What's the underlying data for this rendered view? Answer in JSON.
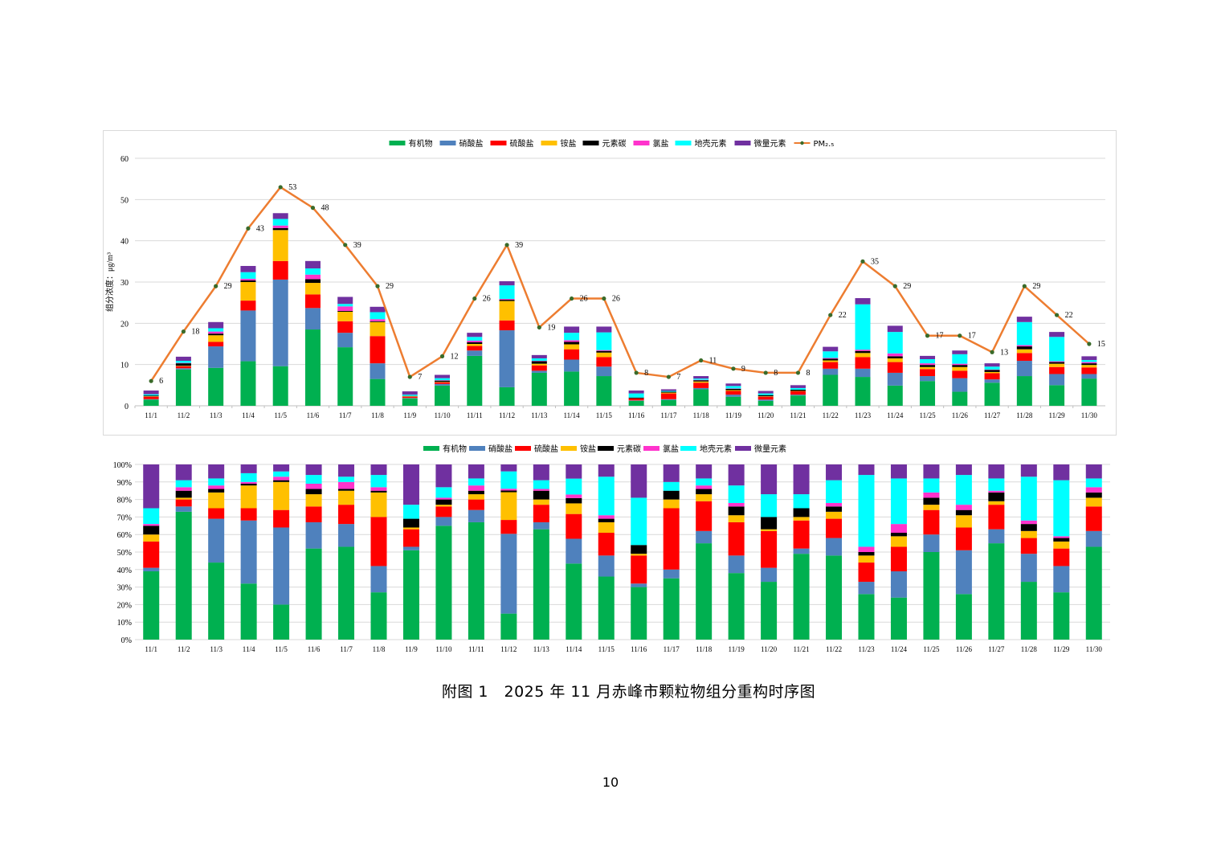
{
  "caption": "附图 1　2025 年 11 月赤峰市颗粒物组分重构时序图",
  "page_number": "10",
  "colors": {
    "有机物": "#00b050",
    "硝酸盐": "#4f81bd",
    "硫酸盐": "#ff0000",
    "铵盐": "#ffc000",
    "元素碳": "#000000",
    "氯盐": "#ff33cc",
    "地壳元素": "#00ffff",
    "微量元素": "#7030a0",
    "PM2.5": "#ed7d31"
  },
  "chart_data": [
    {
      "type": "bar",
      "stacked": true,
      "title": "",
      "xlabel": "",
      "ylabel": "组分浓度：μg/m³",
      "ylim": [
        0,
        60
      ],
      "yticks": [
        "0",
        "10",
        "20",
        "30",
        "40",
        "50",
        "60"
      ],
      "grid": true,
      "legend_position": "top",
      "legend": [
        "有机物",
        "硝酸盐",
        "硫酸盐",
        "铵盐",
        "元素碳",
        "氯盐",
        "地壳元素",
        "微量元素",
        "PM₂.₅"
      ],
      "categories": [
        "11/1",
        "11/2",
        "11/3",
        "11/4",
        "11/5",
        "11/6",
        "11/7",
        "11/8",
        "11/9",
        "11/10",
        "11/11",
        "11/12",
        "11/13",
        "11/14",
        "11/15",
        "11/16",
        "11/17",
        "11/18",
        "11/19",
        "11/20",
        "11/21",
        "11/22",
        "11/23",
        "11/24",
        "11/25",
        "11/26",
        "11/27",
        "11/28",
        "11/29",
        "11/30"
      ],
      "series": [
        {
          "name": "有机物",
          "values": [
            1.5,
            8.8,
            9.2,
            10.8,
            9.6,
            18.5,
            14.2,
            6.5,
            1.8,
            4.9,
            12.1,
            4.5,
            8.0,
            8.3,
            7.2,
            1.2,
            1.4,
            4.0,
            2.2,
            1.2,
            2.5,
            7.5,
            7.0,
            4.9,
            6.0,
            3.4,
            5.6,
            7.2,
            5.0,
            6.6
          ]
        },
        {
          "name": "硝酸盐",
          "values": [
            0.1,
            0.3,
            5.2,
            12.3,
            21.0,
            5.2,
            3.5,
            3.8,
            0.1,
            0.4,
            1.3,
            13.8,
            0.5,
            2.9,
            2.3,
            0.1,
            0.2,
            0.3,
            0.5,
            0.3,
            0.2,
            1.5,
            2.0,
            3.1,
            1.2,
            3.3,
            0.8,
            3.7,
            2.7,
            1.1
          ]
        },
        {
          "name": "硫酸盐",
          "values": [
            0.6,
            0.5,
            1.1,
            2.4,
            4.5,
            3.3,
            2.8,
            6.6,
            0.3,
            0.4,
            1.1,
            2.4,
            1.3,
            2.5,
            2.3,
            0.5,
            1.4,
            1.3,
            0.9,
            0.7,
            0.8,
            1.6,
            2.8,
            2.6,
            1.7,
            1.8,
            1.5,
            1.9,
            1.7,
            1.6
          ]
        },
        {
          "name": "铵盐",
          "values": [
            0.1,
            0.1,
            1.6,
            4.5,
            7.5,
            2.8,
            2.3,
            3.4,
            0.1,
            0.1,
            0.5,
            4.7,
            0.4,
            1.2,
            1.1,
            0.0,
            0.2,
            0.3,
            0.2,
            0.1,
            0.1,
            0.4,
            1.0,
            0.9,
            0.5,
            0.9,
            0.3,
            0.9,
            0.8,
            0.6
          ]
        },
        {
          "name": "元素碳",
          "values": [
            0.2,
            0.6,
            0.4,
            0.4,
            0.5,
            0.9,
            0.2,
            0.2,
            0.1,
            0.3,
            0.4,
            0.3,
            0.6,
            0.6,
            0.4,
            0.2,
            0.2,
            0.3,
            0.3,
            0.3,
            0.3,
            0.4,
            0.5,
            0.5,
            0.5,
            0.5,
            0.5,
            0.7,
            0.4,
            0.4
          ]
        },
        {
          "name": "氯盐",
          "values": [
            0.0,
            0.1,
            0.5,
            0.4,
            0.6,
            1.1,
            1.1,
            0.5,
            0.0,
            0.1,
            0.4,
            0.2,
            0.1,
            0.4,
            0.2,
            0.0,
            0.0,
            0.1,
            0.1,
            0.0,
            0.0,
            0.2,
            0.3,
            0.7,
            0.4,
            0.3,
            0.1,
            0.3,
            0.2,
            0.3
          ]
        },
        {
          "name": "地壳元素",
          "values": [
            0.3,
            0.5,
            0.8,
            1.6,
            1.6,
            1.5,
            0.6,
            1.7,
            0.3,
            0.5,
            0.9,
            3.3,
            0.6,
            1.8,
            4.3,
            1.0,
            0.2,
            0.3,
            0.6,
            0.4,
            0.4,
            1.6,
            11.0,
            5.2,
            1.0,
            2.3,
            0.7,
            5.6,
            5.9,
            0.5
          ]
        },
        {
          "name": "微量元素",
          "values": [
            0.9,
            1.0,
            1.5,
            1.5,
            1.4,
            1.8,
            1.7,
            1.3,
            0.8,
            0.8,
            1.0,
            1.0,
            0.8,
            1.5,
            1.4,
            0.7,
            0.4,
            0.6,
            0.6,
            0.6,
            0.7,
            1.1,
            1.5,
            1.5,
            0.8,
            0.9,
            0.8,
            1.3,
            1.2,
            0.9
          ]
        }
      ],
      "line_series": {
        "name": "PM₂.₅",
        "values": [
          6,
          18,
          29,
          43,
          53,
          48,
          39,
          29,
          7,
          12,
          26,
          39,
          19,
          26,
          26,
          8,
          7,
          11,
          9,
          8,
          8,
          22,
          35,
          29,
          17,
          17,
          13,
          29,
          22,
          15
        ]
      }
    },
    {
      "type": "bar",
      "stacked": true,
      "percent": true,
      "title": "",
      "xlabel": "",
      "ylabel": "",
      "ylim": [
        0,
        100
      ],
      "yticks": [
        "0%",
        "10%",
        "20%",
        "30%",
        "40%",
        "50%",
        "60%",
        "70%",
        "80%",
        "90%",
        "100%"
      ],
      "grid": true,
      "legend_position": "top",
      "legend": [
        "有机物",
        "硝酸盐",
        "硫酸盐",
        "铵盐",
        "元素碳",
        "氯盐",
        "地壳元素",
        "微量元素"
      ],
      "categories": [
        "11/1",
        "11/2",
        "11/3",
        "11/4",
        "11/5",
        "11/6",
        "11/7",
        "11/8",
        "11/9",
        "11/10",
        "11/11",
        "11/12",
        "11/13",
        "11/14",
        "11/15",
        "11/16",
        "11/17",
        "11/18",
        "11/19",
        "11/20",
        "11/21",
        "11/22",
        "11/23",
        "11/24",
        "11/25",
        "11/26",
        "11/27",
        "11/28",
        "11/29",
        "11/30"
      ],
      "series": [
        {
          "name": "有机物",
          "values": [
            39,
            73,
            44,
            32,
            20,
            52,
            53,
            27,
            51,
            65,
            67,
            15,
            63,
            43,
            36,
            30,
            35,
            55,
            38,
            33,
            49,
            48,
            26,
            24,
            50,
            26,
            55,
            33,
            27,
            53
          ]
        },
        {
          "name": "硝酸盐",
          "values": [
            2,
            3,
            25,
            36,
            44,
            15,
            13,
            15,
            2,
            5,
            7,
            46,
            4,
            14,
            12,
            2,
            5,
            7,
            10,
            8,
            3,
            10,
            7,
            15,
            10,
            25,
            8,
            16,
            15,
            9
          ]
        },
        {
          "name": "硫酸盐",
          "values": [
            15,
            4,
            6,
            7,
            10,
            9,
            11,
            28,
            10,
            6,
            6,
            8,
            10,
            14,
            13,
            16,
            35,
            17,
            19,
            21,
            16,
            11,
            11,
            14,
            14,
            13,
            14,
            9,
            10,
            14
          ]
        },
        {
          "name": "铵盐",
          "values": [
            4,
            1,
            9,
            13,
            16,
            7,
            8,
            14,
            1,
            1,
            3,
            16,
            3,
            6,
            6,
            1,
            5,
            4,
            4,
            1,
            2,
            4,
            4,
            6,
            3,
            7,
            2,
            4,
            4,
            5
          ]
        },
        {
          "name": "元素碳",
          "values": [
            5,
            4,
            2,
            1,
            1,
            3,
            1,
            1,
            5,
            3,
            2,
            1,
            5,
            3,
            2,
            5,
            5,
            3,
            5,
            7,
            5,
            3,
            2,
            2,
            4,
            3,
            5,
            4,
            2,
            3
          ]
        },
        {
          "name": "氯盐",
          "values": [
            1,
            2,
            2,
            1,
            2,
            3,
            4,
            2,
            0,
            1,
            3,
            1,
            1,
            2,
            2,
            0,
            0,
            2,
            2,
            0,
            0,
            2,
            3,
            5,
            3,
            3,
            1,
            2,
            1,
            3
          ]
        },
        {
          "name": "地壳元素",
          "values": [
            9,
            4,
            4,
            5,
            3,
            5,
            3,
            7,
            8,
            6,
            4,
            10,
            5,
            9,
            22,
            27,
            5,
            4,
            10,
            13,
            8,
            13,
            41,
            26,
            8,
            17,
            7,
            25,
            32,
            5
          ]
        },
        {
          "name": "微量元素",
          "values": [
            25,
            9,
            8,
            5,
            4,
            6,
            7,
            6,
            23,
            13,
            8,
            4,
            9,
            8,
            7,
            19,
            10,
            8,
            12,
            17,
            17,
            9,
            6,
            8,
            8,
            6,
            8,
            7,
            9,
            8
          ]
        }
      ]
    }
  ]
}
